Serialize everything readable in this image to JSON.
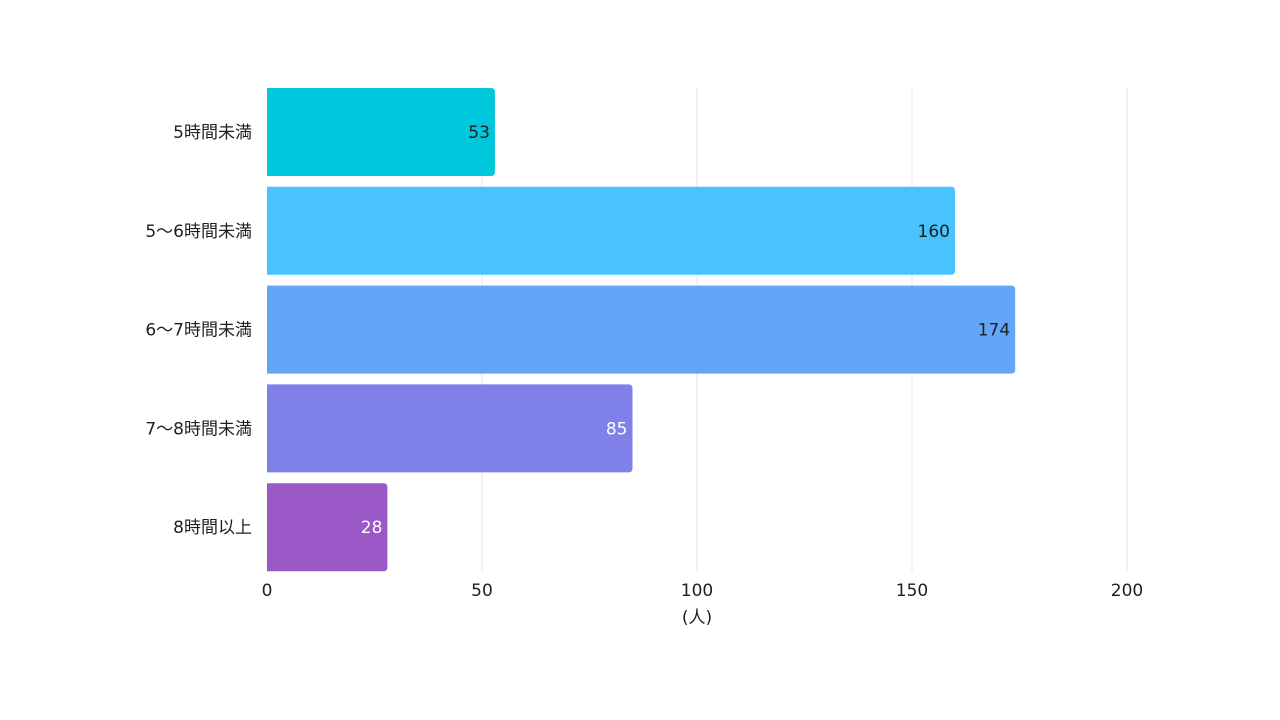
{
  "chart_data": {
    "type": "bar",
    "orientation": "horizontal",
    "categories": [
      "5時間未満",
      "5〜6時間未満",
      "6〜7時間未満",
      "7〜8時間未満",
      "8時間以上"
    ],
    "values": [
      53,
      160,
      174,
      85,
      28
    ],
    "value_labels": [
      "53",
      "160",
      "174",
      "85",
      "28"
    ],
    "xlabel": "(人)",
    "ylabel": "",
    "xlim": [
      0,
      200
    ],
    "x_ticks": [
      0,
      50,
      100,
      150,
      200
    ],
    "x_tick_labels": [
      "0",
      "50",
      "100",
      "150",
      "200"
    ],
    "grid": true,
    "legend": "none",
    "colors": [
      "#00c8dc",
      "#48c3fc",
      "#64a5fa",
      "#7f80e8",
      "#9b59c8"
    ],
    "value_label_colors": [
      "#1f1f1f",
      "#1f1f1f",
      "#1f1f1f",
      "#ffffff",
      "#ffffff"
    ],
    "grid_color": "#e6e6e6"
  }
}
